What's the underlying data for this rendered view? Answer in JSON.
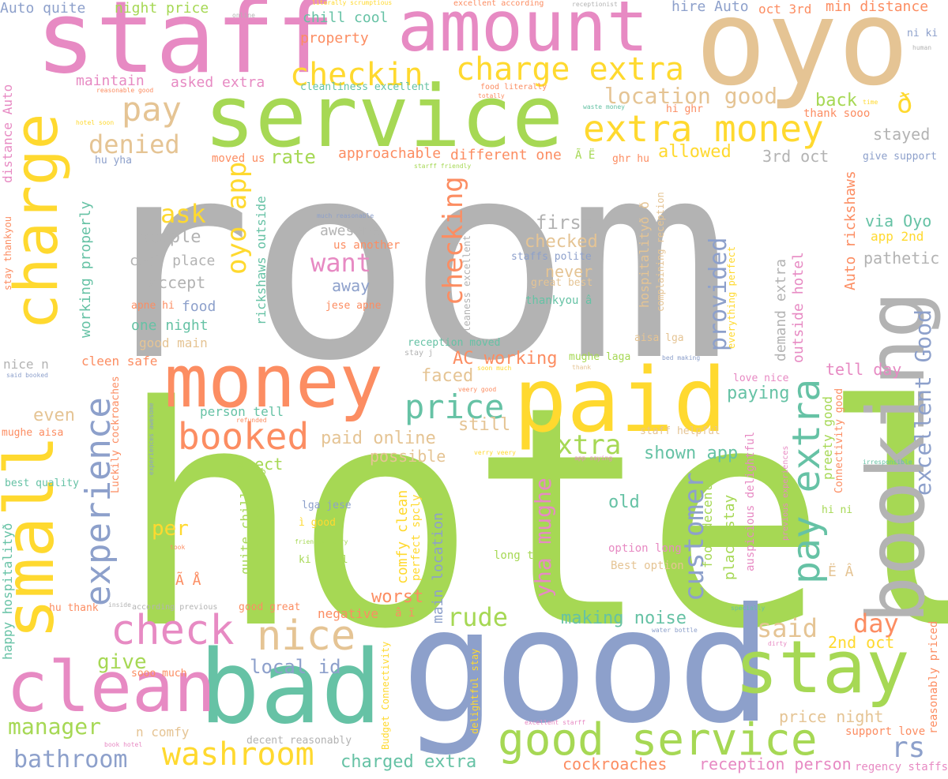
{
  "words": [
    {
      "text": "room",
      "color": "#b3b3b3"
    },
    {
      "text": "hotel",
      "color": "#a6d854"
    },
    {
      "text": "good",
      "color": "#8da0cb"
    },
    {
      "text": "staff",
      "color": "#e78ac3"
    },
    {
      "text": "oyo",
      "color": "#e5c494"
    },
    {
      "text": "service",
      "color": "#a6d854"
    },
    {
      "text": "amount",
      "color": "#e78ac3"
    },
    {
      "text": "charge",
      "color": "#ffd92f"
    },
    {
      "text": "small",
      "color": "#ffd92f"
    },
    {
      "text": "booking",
      "color": "#b3b3b3"
    },
    {
      "text": "money",
      "color": "#fc8d62"
    },
    {
      "text": "paid",
      "color": "#ffd92f"
    },
    {
      "text": "bad",
      "color": "#66c2a5"
    },
    {
      "text": "clean",
      "color": "#e78ac3"
    },
    {
      "text": "stay",
      "color": "#a6d854"
    },
    {
      "text": "extra money",
      "color": "#ffd92f"
    },
    {
      "text": "charge extra",
      "color": "#ffd92f"
    },
    {
      "text": "checkin",
      "color": "#ffd92f"
    },
    {
      "text": "pay extra",
      "color": "#66c2a5"
    },
    {
      "text": "experience",
      "color": "#8da0cb"
    },
    {
      "text": "good service",
      "color": "#a6d854"
    },
    {
      "text": "check",
      "color": "#e78ac3"
    },
    {
      "text": "nice",
      "color": "#e5c494"
    },
    {
      "text": "booked",
      "color": "#fc8d62"
    },
    {
      "text": "price",
      "color": "#66c2a5"
    },
    {
      "text": "washroom",
      "color": "#ffd92f"
    },
    {
      "text": "pay",
      "color": "#e5c494"
    },
    {
      "text": "location good",
      "color": "#e5c494"
    },
    {
      "text": "oyo app",
      "color": "#ffd92f"
    },
    {
      "text": "want",
      "color": "#e78ac3"
    },
    {
      "text": "checking",
      "color": "#fc8d62"
    },
    {
      "text": "extra",
      "color": "#a6d854"
    },
    {
      "text": "customer",
      "color": "#8da0cb"
    },
    {
      "text": "excellent Good",
      "color": "#8da0cb"
    },
    {
      "text": "provided",
      "color": "#8da0cb"
    },
    {
      "text": "yha mughe",
      "color": "#e78ac3"
    },
    {
      "text": "manager",
      "color": "#a6d854"
    },
    {
      "text": "bathroom",
      "color": "#8da0cb"
    },
    {
      "text": "rs",
      "color": "#8da0cb"
    },
    {
      "text": "rude",
      "color": "#a6d854"
    },
    {
      "text": "said",
      "color": "#e5c494"
    },
    {
      "text": "day",
      "color": "#fc8d62"
    },
    {
      "text": "denied",
      "color": "#e5c494"
    },
    {
      "text": "ask",
      "color": "#ffd92f"
    },
    {
      "text": "rate",
      "color": "#a6d854"
    },
    {
      "text": "first",
      "color": "#b3b3b3"
    },
    {
      "text": "checked",
      "color": "#e5c494"
    },
    {
      "text": "never",
      "color": "#e5c494"
    },
    {
      "text": "people",
      "color": "#b3b3b3"
    },
    {
      "text": "stayed",
      "color": "#b3b3b3"
    },
    {
      "text": "allowed",
      "color": "#ffd92f"
    },
    {
      "text": "back",
      "color": "#a6d854"
    },
    {
      "text": "3rd oct",
      "color": "#b3b3b3"
    },
    {
      "text": "via Oyo",
      "color": "#66c2a5"
    },
    {
      "text": "pathetic",
      "color": "#b3b3b3"
    },
    {
      "text": "app 2nd",
      "color": "#ffd92f"
    },
    {
      "text": "give support",
      "color": "#8da0cb"
    },
    {
      "text": "AC working",
      "color": "#fc8d62"
    },
    {
      "text": "local id",
      "color": "#8da0cb"
    },
    {
      "text": "making noise",
      "color": "#66c2a5"
    },
    {
      "text": "charged extra",
      "color": "#66c2a5"
    },
    {
      "text": "cockroaches",
      "color": "#fc8d62"
    },
    {
      "text": "reception person",
      "color": "#e78ac3"
    },
    {
      "text": "worst",
      "color": "#fc8d62"
    },
    {
      "text": "paid online",
      "color": "#e5c494"
    },
    {
      "text": "possible",
      "color": "#e5c494"
    },
    {
      "text": "shown app",
      "color": "#66c2a5"
    },
    {
      "text": "old",
      "color": "#66c2a5"
    },
    {
      "text": "paying",
      "color": "#66c2a5"
    },
    {
      "text": "tell day",
      "color": "#e78ac3"
    },
    {
      "text": "faced",
      "color": "#e5c494"
    },
    {
      "text": "still",
      "color": "#e5c494"
    },
    {
      "text": "expect",
      "color": "#a6d854"
    },
    {
      "text": "even",
      "color": "#e5c494"
    },
    {
      "text": "per",
      "color": "#ffd92f"
    },
    {
      "text": "give",
      "color": "#a6d854"
    },
    {
      "text": "2nd oct",
      "color": "#ffd92f"
    },
    {
      "text": "price night",
      "color": "#e5c494"
    },
    {
      "text": "support love",
      "color": "#fc8d62"
    },
    {
      "text": "Auto quite",
      "color": "#8da0cb"
    },
    {
      "text": "night price",
      "color": "#a6d854"
    },
    {
      "text": "chill cool",
      "color": "#66c2a5"
    },
    {
      "text": "property",
      "color": "#fc8d62"
    },
    {
      "text": "hire Auto",
      "color": "#8da0cb"
    },
    {
      "text": "oct 3rd",
      "color": "#fc8d62"
    },
    {
      "text": "min distance",
      "color": "#fc8d62"
    },
    {
      "text": "ni ki",
      "color": "#8da0cb"
    },
    {
      "text": "maintain",
      "color": "#e78ac3"
    },
    {
      "text": "asked extra",
      "color": "#e78ac3"
    },
    {
      "text": "cleanliness excellent",
      "color": "#66c2a5"
    },
    {
      "text": "hi ghr",
      "color": "#fc8d62"
    },
    {
      "text": "thank sooo",
      "color": "#fc8d62"
    },
    {
      "text": "approachable",
      "color": "#fc8d62"
    },
    {
      "text": "different one",
      "color": "#fc8d62"
    },
    {
      "text": "moved us",
      "color": "#fc8d62"
    },
    {
      "text": "hu yha",
      "color": "#8da0cb"
    },
    {
      "text": "ghr hu",
      "color": "#fc8d62"
    },
    {
      "text": "awesome",
      "color": "#b3b3b3"
    },
    {
      "text": "us another",
      "color": "#fc8d62"
    },
    {
      "text": "away",
      "color": "#8da0cb"
    },
    {
      "text": "jese apne",
      "color": "#fc8d62"
    },
    {
      "text": "cool place",
      "color": "#b3b3b3"
    },
    {
      "text": "accept",
      "color": "#b3b3b3"
    },
    {
      "text": "food",
      "color": "#8da0cb"
    },
    {
      "text": "one night",
      "color": "#66c2a5"
    },
    {
      "text": "good main",
      "color": "#e5c494"
    },
    {
      "text": "apne hi",
      "color": "#fc8d62"
    },
    {
      "text": "staffs polite",
      "color": "#8da0cb"
    },
    {
      "text": "great best",
      "color": "#e5c494"
    },
    {
      "text": "thankyou â",
      "color": "#66c2a5"
    },
    {
      "text": "reception moved",
      "color": "#66c2a5"
    },
    {
      "text": "mughe laga",
      "color": "#a6d854"
    },
    {
      "text": "aisa lga",
      "color": "#e5c494"
    },
    {
      "text": "nice n",
      "color": "#b3b3b3"
    },
    {
      "text": "cleen safe",
      "color": "#fc8d62"
    },
    {
      "text": "person tell",
      "color": "#66c2a5"
    },
    {
      "text": "mughe aisa",
      "color": "#fc8d62"
    },
    {
      "text": "best quality",
      "color": "#66c2a5"
    },
    {
      "text": "lga jese",
      "color": "#8da0cb"
    },
    {
      "text": "ì good",
      "color": "#ffd92f"
    },
    {
      "text": "ki hotel",
      "color": "#a6d854"
    },
    {
      "text": "long time",
      "color": "#a6d854"
    },
    {
      "text": "option long",
      "color": "#e78ac3"
    },
    {
      "text": "Best option",
      "color": "#e5c494"
    },
    {
      "text": "staff helpful",
      "color": "#e5c494"
    },
    {
      "text": "love nice",
      "color": "#e78ac3"
    },
    {
      "text": "hi ni",
      "color": "#a6d854"
    },
    {
      "text": "Ã Å",
      "color": "#fc8d62"
    },
    {
      "text": "Ë Â",
      "color": "#e5c494"
    },
    {
      "text": "hu thank",
      "color": "#fc8d62"
    },
    {
      "text": "good great",
      "color": "#fc8d62"
    },
    {
      "text": "negative",
      "color": "#fc8d62"
    },
    {
      "text": "â ï",
      "color": "#fc8d62"
    },
    {
      "text": "n comfy",
      "color": "#e5c494"
    },
    {
      "text": "decent reasonably",
      "color": "#b3b3b3"
    },
    {
      "text": "sooo much",
      "color": "#fc8d62"
    },
    {
      "text": "regency staffs",
      "color": "#e78ac3"
    },
    {
      "text": "Ã Ë",
      "color": "#a6d854"
    },
    {
      "text": "ð",
      "color": "#ffd92f"
    },
    {
      "text": "online",
      "color": "#b3b3b3"
    },
    {
      "text": "literally scrumptious",
      "color": "#ffd92f"
    },
    {
      "text": "excellent according",
      "color": "#fc8d62"
    },
    {
      "text": "receptionist",
      "color": "#b3b3b3"
    },
    {
      "text": "human",
      "color": "#b3b3b3"
    },
    {
      "text": "reasonable good",
      "color": "#fc8d62"
    },
    {
      "text": "food literally",
      "color": "#fc8d62"
    },
    {
      "text": "totally",
      "color": "#fc8d62"
    },
    {
      "text": "waste money",
      "color": "#66c2a5"
    },
    {
      "text": "time",
      "color": "#ffd92f"
    },
    {
      "text": "hotel soon",
      "color": "#ffd92f"
    },
    {
      "text": "starff friendly",
      "color": "#a6d854"
    },
    {
      "text": "much reasonable",
      "color": "#8da0cb"
    },
    {
      "text": "stay j",
      "color": "#b3b3b3"
    },
    {
      "text": "soon much",
      "color": "#ffd92f"
    },
    {
      "text": "thank",
      "color": "#e5c494"
    },
    {
      "text": "bed making",
      "color": "#8da0cb"
    },
    {
      "text": "veery good",
      "color": "#fc8d62"
    },
    {
      "text": "said booked",
      "color": "#8da0cb"
    },
    {
      "text": "refunded",
      "color": "#fc8d62"
    },
    {
      "text": "verry veery",
      "color": "#ffd92f"
    },
    {
      "text": "app saying",
      "color": "#e78ac3"
    },
    {
      "text": "irresponsible",
      "color": "#66c2a5"
    },
    {
      "text": "friendly verry",
      "color": "#a6d854"
    },
    {
      "text": "took",
      "color": "#fc8d62"
    },
    {
      "text": "inside",
      "color": "#b3b3b3"
    },
    {
      "text": "according previous",
      "color": "#b3b3b3"
    },
    {
      "text": "specially",
      "color": "#66c2a5"
    },
    {
      "text": "water bottle",
      "color": "#8da0cb"
    },
    {
      "text": "dirty",
      "color": "#e78ac3"
    },
    {
      "text": "excellent starff",
      "color": "#e78ac3"
    },
    {
      "text": "book hotel",
      "color": "#e78ac3"
    },
    {
      "text": "distance Auto",
      "color": "#e78ac3"
    },
    {
      "text": "stay thankyou",
      "color": "#fc8d62"
    },
    {
      "text": "happy hospitalityð",
      "color": "#66c2a5"
    },
    {
      "text": "working properly",
      "color": "#66c2a5"
    },
    {
      "text": "rickshaws outside",
      "color": "#66c2a5"
    },
    {
      "text": "Luckily cockroaches",
      "color": "#fc8d62"
    },
    {
      "text": "experiences awesome",
      "color": "#8da0cb"
    },
    {
      "text": "quite chill",
      "color": "#a6d854"
    },
    {
      "text": "much everything",
      "color": "#a6d854"
    },
    {
      "text": "comfy clean",
      "color": "#ffd92f"
    },
    {
      "text": "perfect spcly",
      "color": "#ffd92f"
    },
    {
      "text": "main location",
      "color": "#8da0cb"
    },
    {
      "text": "cleaness excellent",
      "color": "#b3b3b3"
    },
    {
      "text": "Budget Connectivity",
      "color": "#ffd92f"
    },
    {
      "text": "delightful stay",
      "color": "#ffd92f"
    },
    {
      "text": "food decent",
      "color": "#a6d854"
    },
    {
      "text": "place stay",
      "color": "#a6d854"
    },
    {
      "text": "auspicious delightful",
      "color": "#e78ac3"
    },
    {
      "text": "hospitalityð ð",
      "color": "#e5c494"
    },
    {
      "text": "complaining reception",
      "color": "#e5c494"
    },
    {
      "text": "everything perfect",
      "color": "#ffd92f"
    },
    {
      "text": "demand extra",
      "color": "#b3b3b3"
    },
    {
      "text": "outside hotel",
      "color": "#e78ac3"
    },
    {
      "text": "Auto rickshaws",
      "color": "#fc8d62"
    },
    {
      "text": "preety good",
      "color": "#a6d854"
    },
    {
      "text": "Connectivity good",
      "color": "#fc8d62"
    },
    {
      "text": "previous experiences",
      "color": "#e78ac3"
    },
    {
      "text": "reasonably priced",
      "color": "#fc8d62"
    }
  ]
}
